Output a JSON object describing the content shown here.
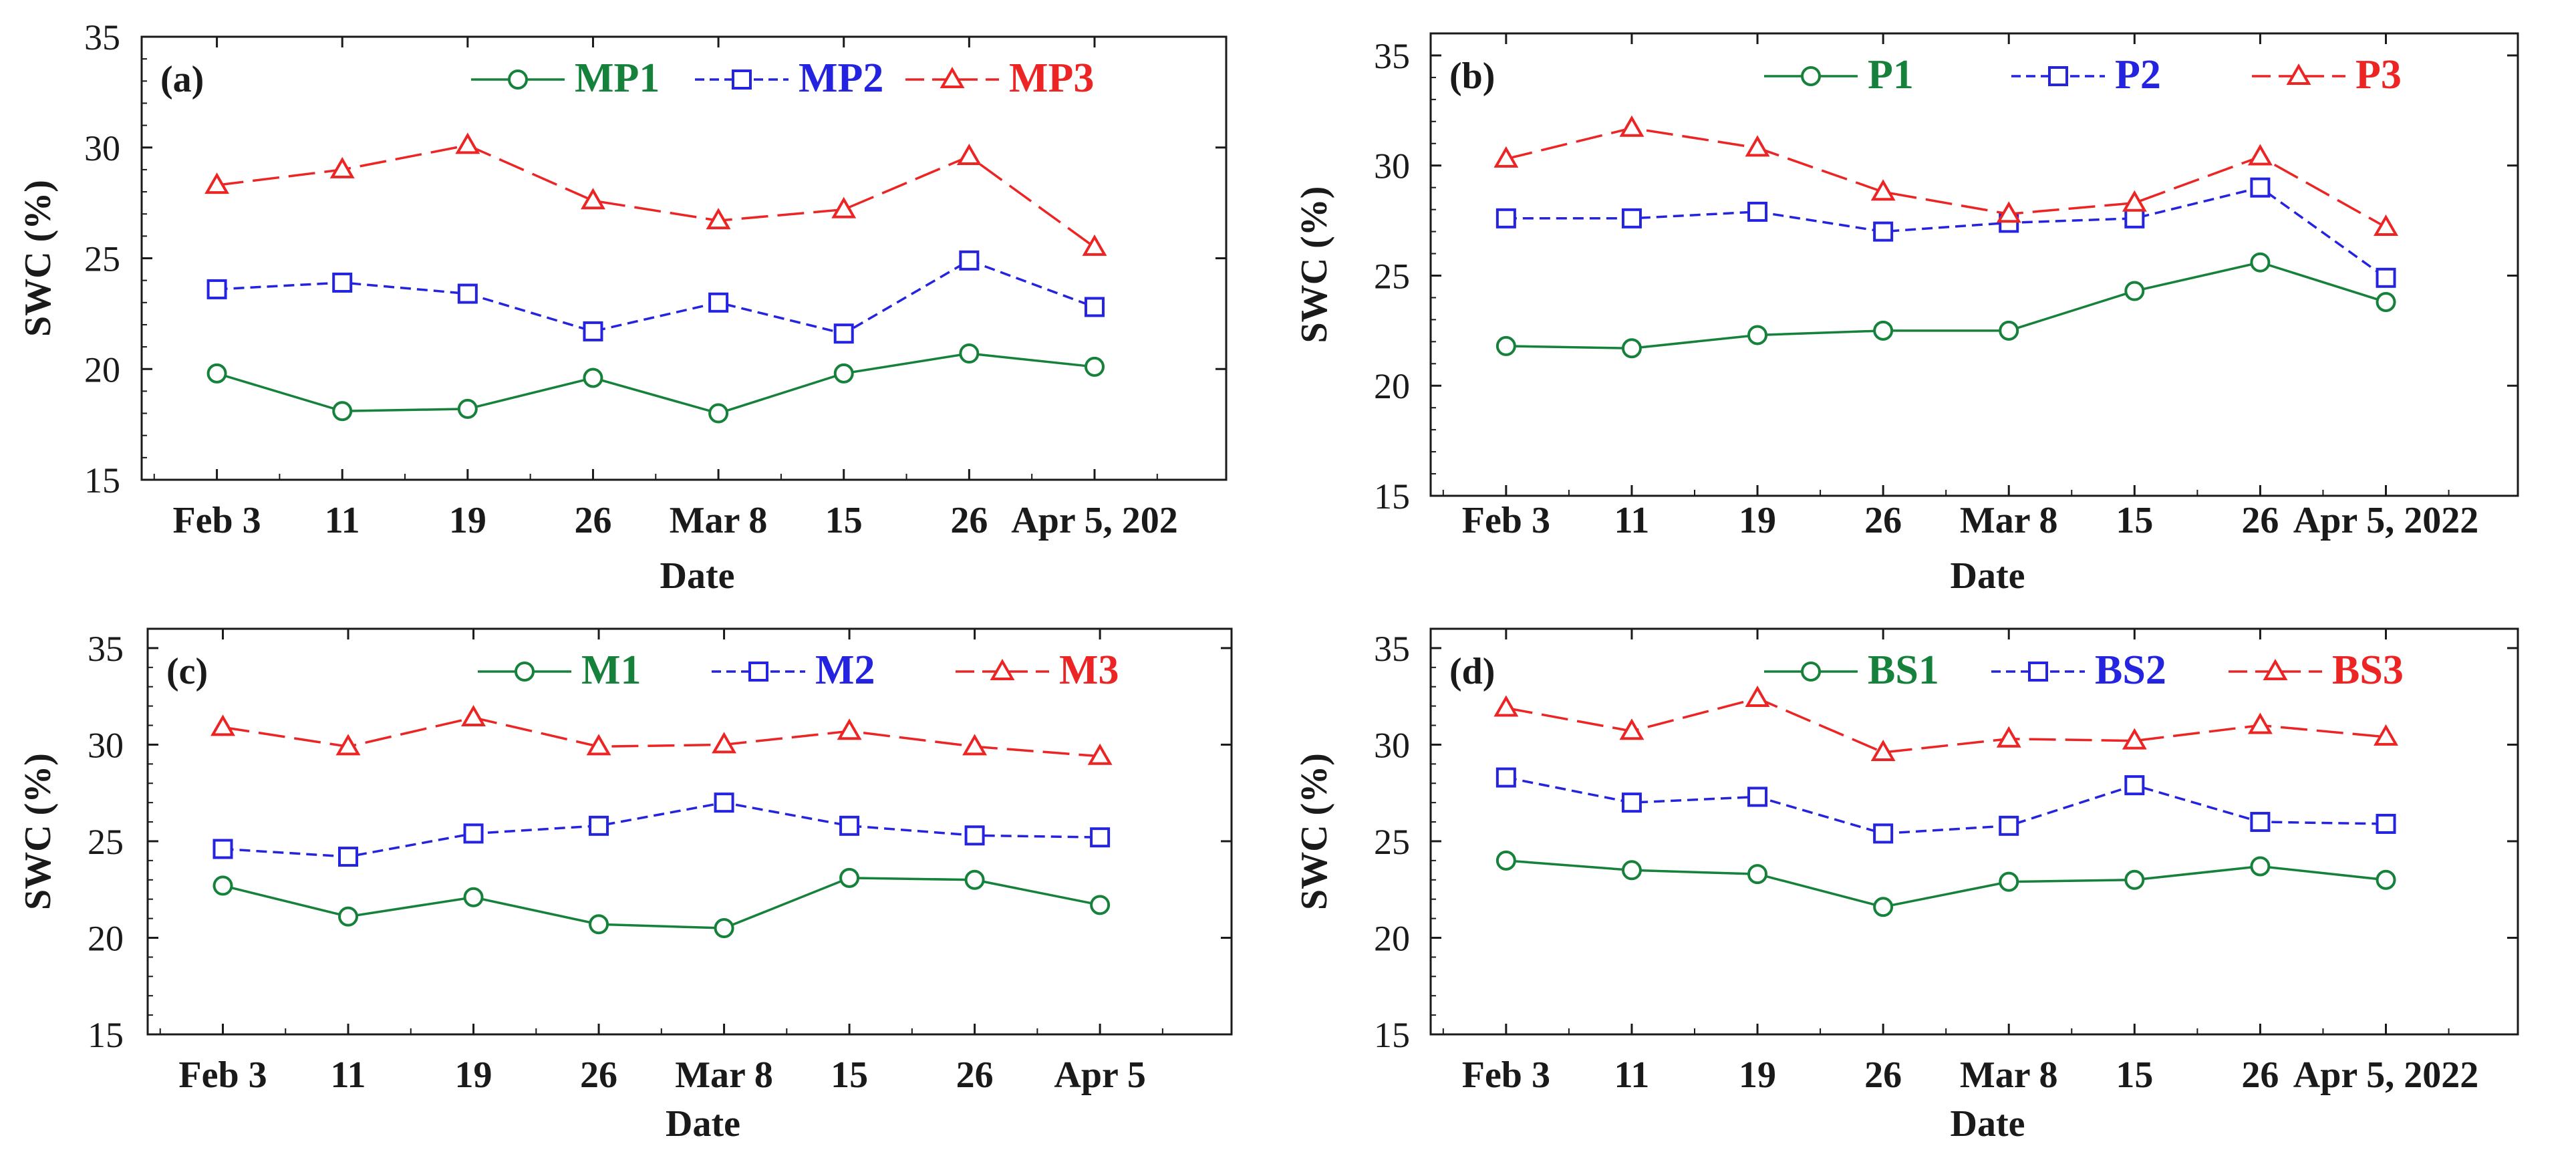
{
  "colors": {
    "series1": "#15813a",
    "series2": "#2424e0",
    "series3": "#ec2424",
    "axis": "#1a1a1a"
  },
  "chart_data": [
    {
      "type": "line",
      "panel_label": "(a)",
      "xlabel": "Date",
      "ylabel": "SWC (%)",
      "ylim": [
        15,
        35
      ],
      "yticks": [
        15,
        20,
        25,
        30,
        35
      ],
      "x_index_range": [
        -0.6,
        8.05
      ],
      "tick_labels": [
        "Feb 3",
        "11",
        "19",
        "26",
        "Mar 8",
        "15",
        "26",
        "Apr 5, 202"
      ],
      "categories": [
        "Feb 3",
        "Feb 11",
        "Feb 19",
        "Feb 26",
        "Mar 8",
        "Mar 15",
        "Mar 26",
        "Apr 5"
      ],
      "series": [
        {
          "name": "MP1",
          "marker": "circle",
          "values": [
            19.8,
            18.1,
            18.2,
            19.6,
            18.0,
            19.8,
            20.7,
            20.1
          ]
        },
        {
          "name": "MP2",
          "marker": "square",
          "values": [
            23.6,
            23.9,
            23.4,
            21.7,
            23.0,
            21.6,
            24.9,
            22.8
          ]
        },
        {
          "name": "MP3",
          "marker": "triangle",
          "values": [
            28.3,
            29.0,
            30.1,
            27.6,
            26.7,
            27.2,
            29.6,
            25.5
          ]
        }
      ]
    },
    {
      "type": "line",
      "panel_label": "(b)",
      "xlabel": "Date",
      "ylabel": "SWC (%)",
      "ylim": [
        15,
        36
      ],
      "yticks": [
        15,
        20,
        25,
        30,
        35
      ],
      "x_index_range": [
        -0.6,
        8.05
      ],
      "tick_labels": [
        "Feb 3",
        "11",
        "19",
        "26",
        "Mar 8",
        "15",
        "26",
        "Apr 5, 2022"
      ],
      "categories": [
        "Feb 3",
        "Feb 11",
        "Feb 19",
        "Feb 26",
        "Mar 8",
        "Mar 15",
        "Mar 26",
        "Apr 5"
      ],
      "series": [
        {
          "name": "P1",
          "marker": "circle",
          "values": [
            21.8,
            21.7,
            22.3,
            22.5,
            22.5,
            24.3,
            25.6,
            23.8
          ]
        },
        {
          "name": "P2",
          "marker": "square",
          "values": [
            27.6,
            27.6,
            27.9,
            27.0,
            27.4,
            27.6,
            29.0,
            24.9
          ]
        },
        {
          "name": "P3",
          "marker": "triangle",
          "values": [
            30.3,
            31.7,
            30.8,
            28.8,
            27.8,
            28.3,
            30.4,
            27.2
          ]
        }
      ]
    },
    {
      "type": "line",
      "panel_label": "(c)",
      "xlabel": "Date",
      "ylabel": "SWC (%)",
      "ylim": [
        15,
        36
      ],
      "yticks": [
        15,
        20,
        25,
        30,
        35
      ],
      "x_index_range": [
        -0.6,
        8.05
      ],
      "tick_labels": [
        "Feb 3",
        "11",
        "19",
        "26",
        "Mar 8",
        "15",
        "26",
        "Apr 5"
      ],
      "categories": [
        "Feb 3",
        "Feb 11",
        "Feb 19",
        "Feb 26",
        "Mar 8",
        "Mar 15",
        "Mar 26",
        "Apr 5"
      ],
      "series": [
        {
          "name": "M1",
          "marker": "circle",
          "values": [
            22.7,
            21.1,
            22.1,
            20.7,
            20.5,
            23.1,
            23.0,
            21.7
          ]
        },
        {
          "name": "M2",
          "marker": "square",
          "values": [
            24.6,
            24.2,
            25.4,
            25.8,
            27.0,
            25.8,
            25.3,
            25.2
          ]
        },
        {
          "name": "M3",
          "marker": "triangle",
          "values": [
            30.9,
            29.9,
            31.4,
            29.9,
            30.0,
            30.7,
            29.9,
            29.4
          ]
        }
      ]
    },
    {
      "type": "line",
      "panel_label": "(d)",
      "xlabel": "Date",
      "ylabel": "SWC (%)",
      "ylim": [
        15,
        36
      ],
      "yticks": [
        15,
        20,
        25,
        30,
        35
      ],
      "x_index_range": [
        -0.6,
        8.05
      ],
      "tick_labels": [
        "Feb 3",
        "11",
        "19",
        "26",
        "Mar 8",
        "15",
        "26",
        "Apr 5, 2022"
      ],
      "categories": [
        "Feb 3",
        "Feb 11",
        "Feb 19",
        "Feb 26",
        "Mar 8",
        "Mar 15",
        "Mar 26",
        "Apr 5"
      ],
      "series": [
        {
          "name": "BS1",
          "marker": "circle",
          "values": [
            24.0,
            23.5,
            23.3,
            21.6,
            22.9,
            23.0,
            23.7,
            23.0
          ]
        },
        {
          "name": "BS2",
          "marker": "square",
          "values": [
            28.3,
            27.0,
            27.3,
            25.4,
            25.8,
            27.9,
            26.0,
            25.9
          ]
        },
        {
          "name": "BS3",
          "marker": "triangle",
          "values": [
            31.9,
            30.7,
            32.4,
            29.6,
            30.3,
            30.2,
            31.0,
            30.4
          ]
        }
      ]
    }
  ]
}
